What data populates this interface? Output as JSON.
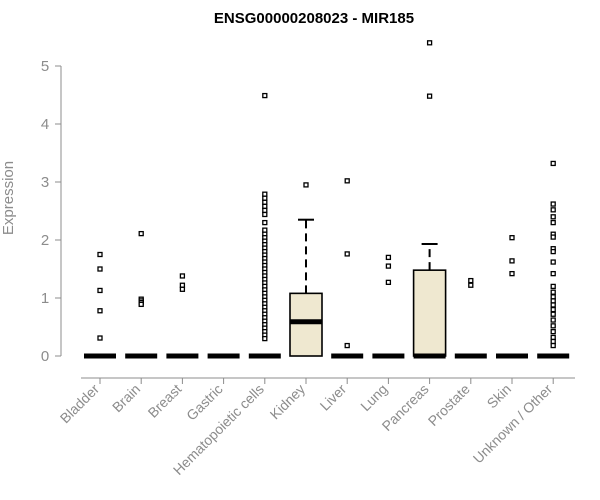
{
  "chart_data": {
    "type": "box",
    "title": "ENSG00000208023 - MIR185",
    "xlabel": "",
    "ylabel": "Expression",
    "ylim": [
      0,
      5.4
    ],
    "yticks": [
      0,
      1,
      2,
      3,
      4,
      5
    ],
    "grid": false,
    "categories": [
      "Bladder",
      "Brain",
      "Breast",
      "Gastric",
      "Hematopoietic cells",
      "Kidney",
      "Liver",
      "Lung",
      "Pancreas",
      "Prostate",
      "Skin",
      "Unknown / Other"
    ],
    "box_color": "#efe8d0",
    "boxes": [
      {
        "q1": 0,
        "median": 0,
        "q3": 0,
        "whisker_low": 0,
        "whisker_high": 0,
        "outliers": [
          1.75,
          1.5,
          1.13,
          0.78,
          0.31
        ]
      },
      {
        "q1": 0,
        "median": 0,
        "q3": 0,
        "whisker_low": 0,
        "whisker_high": 0,
        "outliers": [
          2.11,
          0.98,
          0.95,
          0.92,
          0.89
        ]
      },
      {
        "q1": 0,
        "median": 0,
        "q3": 0,
        "whisker_low": 0,
        "whisker_high": 0,
        "outliers": [
          1.38,
          1.22,
          1.15
        ]
      },
      {
        "q1": 0,
        "median": 0,
        "q3": 0,
        "whisker_low": 0,
        "whisker_high": 0,
        "outliers": []
      },
      {
        "q1": 0,
        "median": 0,
        "q3": 0,
        "whisker_low": 0,
        "whisker_high": 0,
        "outliers": [
          4.49,
          2.79,
          2.72,
          2.65,
          2.58,
          2.51,
          2.44,
          2.3,
          2.17,
          2.1,
          2.04,
          1.98,
          1.92,
          1.86,
          1.8,
          1.74,
          1.68,
          1.62,
          1.56,
          1.5,
          1.44,
          1.38,
          1.32,
          1.26,
          1.2,
          1.14,
          1.08,
          1.02,
          0.96,
          0.9,
          0.84,
          0.78,
          0.72,
          0.66,
          0.6,
          0.54,
          0.48,
          0.42,
          0.36,
          0.3
        ]
      },
      {
        "q1": 0,
        "median": 0.59,
        "q3": 1.08,
        "whisker_low": 0,
        "whisker_high": 2.35,
        "outliers": [
          2.95
        ]
      },
      {
        "q1": 0,
        "median": 0,
        "q3": 0,
        "whisker_low": 0,
        "whisker_high": 0,
        "outliers": [
          3.02,
          1.76,
          0.18
        ]
      },
      {
        "q1": 0,
        "median": 0,
        "q3": 0,
        "whisker_low": 0,
        "whisker_high": 0,
        "outliers": [
          1.7,
          1.55,
          1.27
        ]
      },
      {
        "q1": 0,
        "median": 0,
        "q3": 1.48,
        "whisker_low": 0,
        "whisker_high": 1.93,
        "outliers": [
          5.4,
          4.48
        ]
      },
      {
        "q1": 0,
        "median": 0,
        "q3": 0,
        "whisker_low": 0,
        "whisker_high": 0,
        "outliers": [
          1.3,
          1.22
        ]
      },
      {
        "q1": 0,
        "median": 0,
        "q3": 0,
        "whisker_low": 0,
        "whisker_high": 0,
        "outliers": [
          2.04,
          1.64,
          1.42
        ]
      },
      {
        "q1": 0,
        "median": 0,
        "q3": 0,
        "whisker_low": 0,
        "whisker_high": 0,
        "outliers": [
          3.32,
          2.62,
          2.52,
          2.4,
          2.3,
          2.1,
          2.05,
          1.85,
          1.8,
          1.62,
          1.42,
          1.2,
          1.1,
          1.02,
          0.95,
          0.88,
          0.8,
          0.72,
          0.62,
          0.52,
          0.42,
          0.32,
          0.25,
          0.18
        ]
      }
    ]
  }
}
